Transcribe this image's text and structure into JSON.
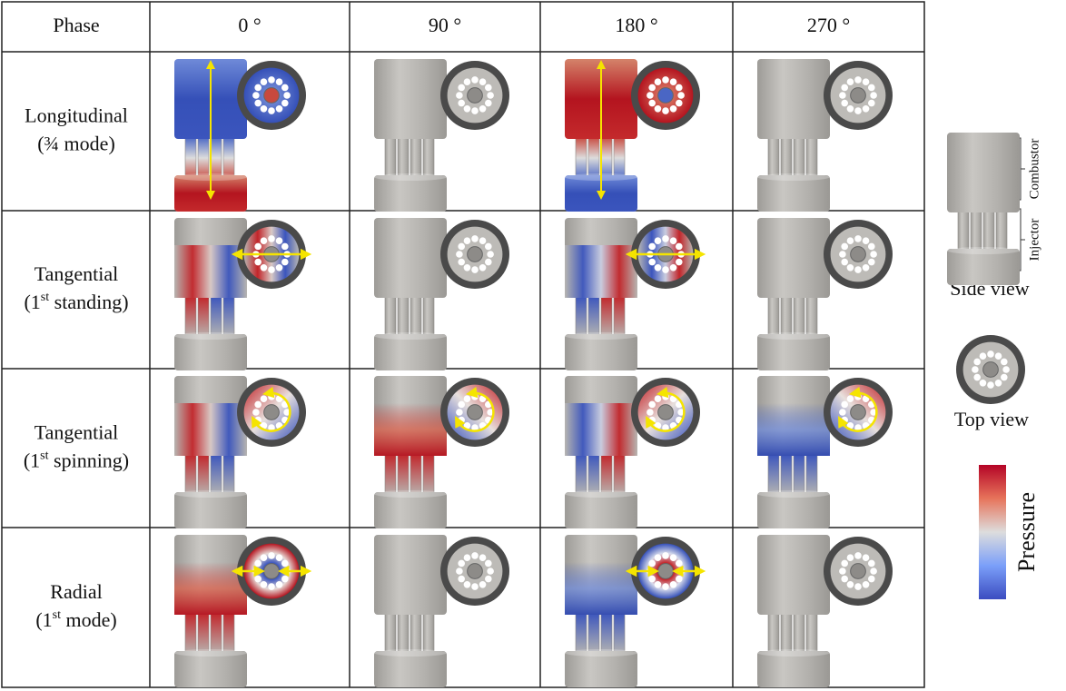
{
  "header": {
    "phase": "Phase",
    "phases": [
      "0 °",
      "90 °",
      "180 °",
      "270 °"
    ]
  },
  "rows": [
    {
      "name": "Longitudinal",
      "detail": {
        "pre": "(¾ mode)"
      }
    },
    {
      "name": "Tangential",
      "detail": {
        "pre": "(1",
        "sup": "st",
        "post": " standing)"
      }
    },
    {
      "name": "Tangential",
      "detail": {
        "pre": "(1",
        "sup": "st",
        "post": " spinning)"
      }
    },
    {
      "name": "Radial",
      "detail": {
        "pre": "(1",
        "sup": "st",
        "post": " mode)"
      }
    }
  ],
  "legend": {
    "combustor": "Combustor",
    "injector": "Injector",
    "side_view": "Side view",
    "top_view": "Top view",
    "pressure": "Pressure"
  }
}
